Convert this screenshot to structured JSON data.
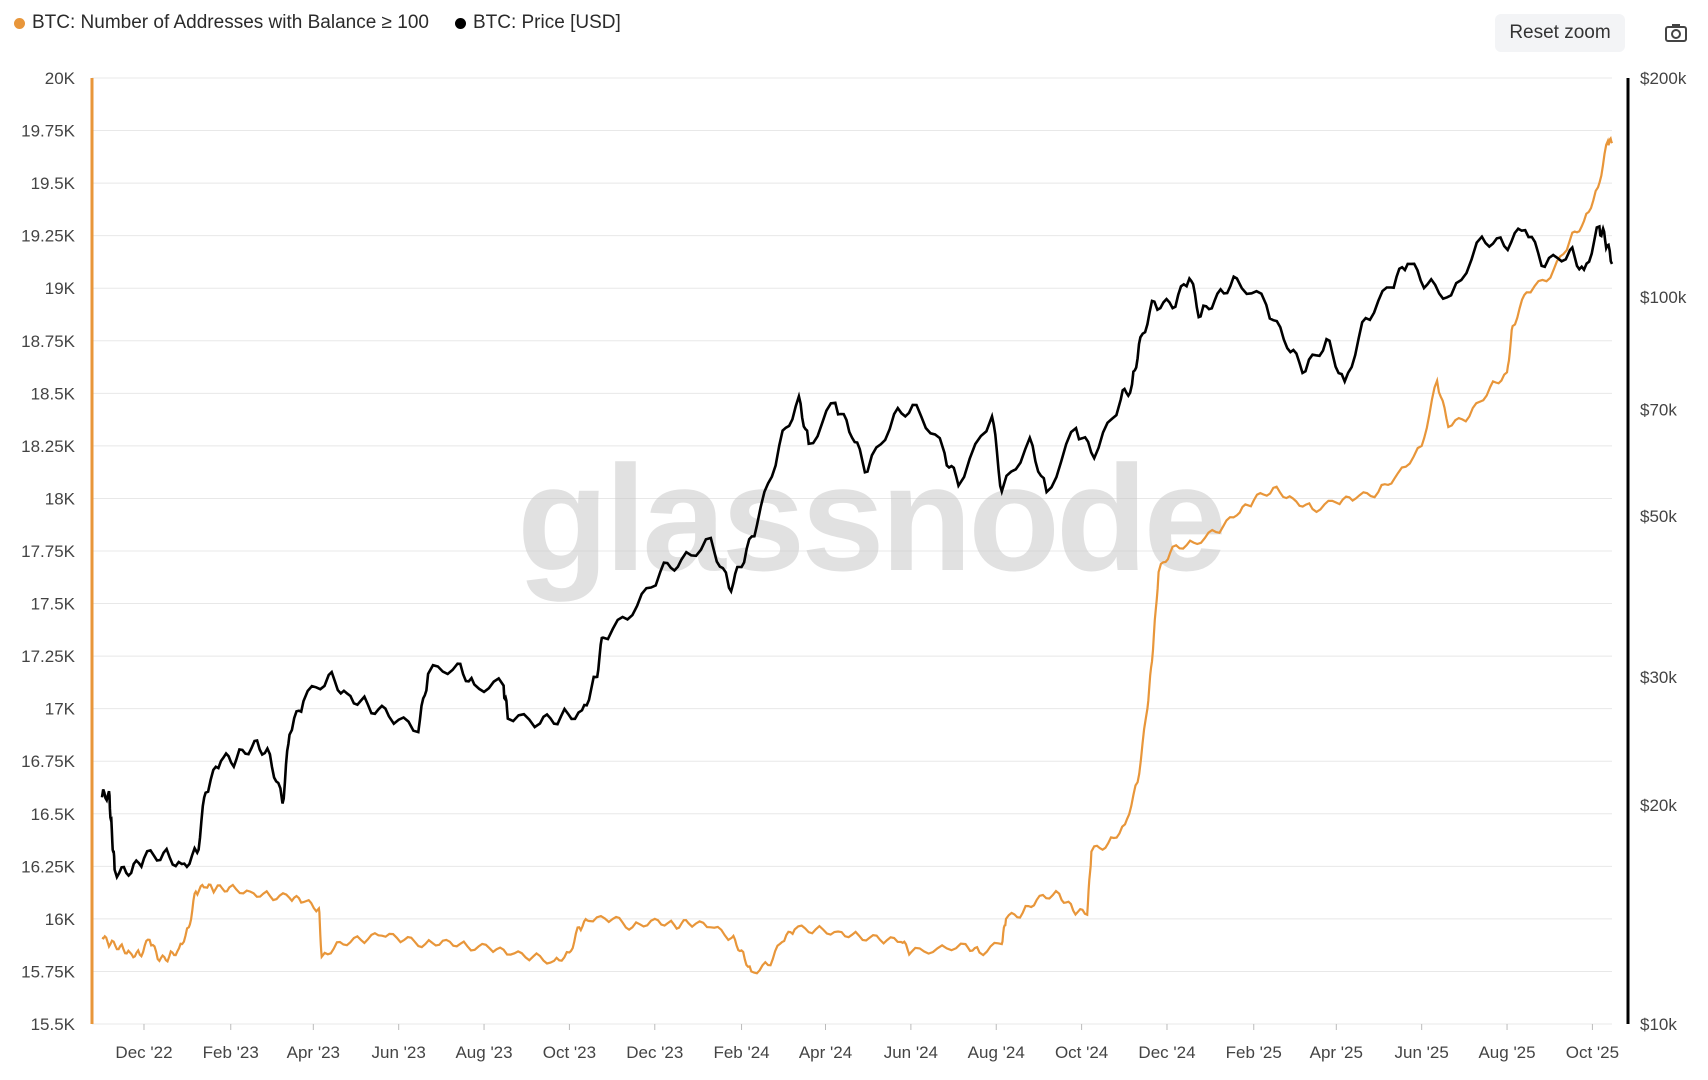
{
  "legend": {
    "series1_label": "BTC: Number of Addresses with Balance ≥ 100",
    "series2_label": "BTC: Price [USD]"
  },
  "toolbar": {
    "reset_zoom_label": "Reset zoom",
    "camera_icon": "camera-icon"
  },
  "watermark": "glassnode",
  "colors": {
    "addresses": "#E8963A",
    "price": "#000000",
    "grid": "#e8e8e8",
    "left_axis": "#E8963A",
    "right_axis": "#000000"
  },
  "chart_data": {
    "type": "line",
    "x_tick_labels": [
      "Dec '22",
      "Feb '23",
      "Apr '23",
      "Jun '23",
      "Aug '23",
      "Oct '23",
      "Dec '23",
      "Feb '24",
      "Apr '24",
      "Jun '24",
      "Aug '24",
      "Oct '24",
      "Dec '24",
      "Feb '25",
      "Apr '25",
      "Jun '25",
      "Aug '25",
      "Oct '25"
    ],
    "y_left": {
      "min": 15500,
      "max": 20000,
      "tick_values": [
        15500,
        15750,
        16000,
        16250,
        16500,
        16750,
        17000,
        17250,
        17500,
        17750,
        18000,
        18250,
        18500,
        18750,
        19000,
        19250,
        19500,
        19750,
        20000
      ],
      "tick_labels": [
        "15.5K",
        "15.75K",
        "16K",
        "16.25K",
        "16.5K",
        "16.75K",
        "17K",
        "17.25K",
        "17.5K",
        "17.75K",
        "18K",
        "18.25K",
        "18.5K",
        "18.75K",
        "19K",
        "19.25K",
        "19.5K",
        "19.75K",
        "20K"
      ]
    },
    "y_right": {
      "scale": "log",
      "min": 10000,
      "max": 200000,
      "tick_values": [
        10000,
        20000,
        30000,
        50000,
        70000,
        100000,
        200000
      ],
      "tick_labels": [
        "$10k",
        "$20k",
        "$30k",
        "$50k",
        "$70k",
        "$100k",
        "$200k"
      ]
    },
    "series": [
      {
        "name": "BTC: Number of Addresses with Balance ≥ 100",
        "axis": "left",
        "points": [
          [
            "2022-11-01",
            15910
          ],
          [
            "2022-11-07",
            15880
          ],
          [
            "2022-11-14",
            15870
          ],
          [
            "2022-11-21",
            15840
          ],
          [
            "2022-11-28",
            15830
          ],
          [
            "2022-12-05",
            15900
          ],
          [
            "2022-12-12",
            15800
          ],
          [
            "2022-12-19",
            15820
          ],
          [
            "2022-12-26",
            15860
          ],
          [
            "2023-01-02",
            15960
          ],
          [
            "2023-01-07",
            16130
          ],
          [
            "2023-01-14",
            16150
          ],
          [
            "2023-01-21",
            16140
          ],
          [
            "2023-01-31",
            16150
          ],
          [
            "2023-02-15",
            16130
          ],
          [
            "2023-03-01",
            16110
          ],
          [
            "2023-03-15",
            16100
          ],
          [
            "2023-03-25",
            16080
          ],
          [
            "2023-04-05",
            16050
          ],
          [
            "2023-04-07",
            15820
          ],
          [
            "2023-04-20",
            15890
          ],
          [
            "2023-05-05",
            15900
          ],
          [
            "2023-05-20",
            15920
          ],
          [
            "2023-06-05",
            15900
          ],
          [
            "2023-06-20",
            15880
          ],
          [
            "2023-07-05",
            15900
          ],
          [
            "2023-07-20",
            15870
          ],
          [
            "2023-08-05",
            15860
          ],
          [
            "2023-08-20",
            15830
          ],
          [
            "2023-09-05",
            15820
          ],
          [
            "2023-09-20",
            15800
          ],
          [
            "2023-10-01",
            15840
          ],
          [
            "2023-10-08",
            15960
          ],
          [
            "2023-10-15",
            15990
          ],
          [
            "2023-11-01",
            16000
          ],
          [
            "2023-11-15",
            15960
          ],
          [
            "2023-12-01",
            16000
          ],
          [
            "2023-12-15",
            15970
          ],
          [
            "2023-12-25",
            15980
          ],
          [
            "2024-01-10",
            15960
          ],
          [
            "2024-01-25",
            15910
          ],
          [
            "2024-02-01",
            15850
          ],
          [
            "2024-02-08",
            15750
          ],
          [
            "2024-02-20",
            15780
          ],
          [
            "2024-03-01",
            15890
          ],
          [
            "2024-03-10",
            15950
          ],
          [
            "2024-03-25",
            15950
          ],
          [
            "2024-04-10",
            15940
          ],
          [
            "2024-04-25",
            15920
          ],
          [
            "2024-05-10",
            15900
          ],
          [
            "2024-05-25",
            15890
          ],
          [
            "2024-06-01",
            15840
          ],
          [
            "2024-06-20",
            15860
          ],
          [
            "2024-07-10",
            15880
          ],
          [
            "2024-07-20",
            15840
          ],
          [
            "2024-08-05",
            15880
          ],
          [
            "2024-08-08",
            16000
          ],
          [
            "2024-08-20",
            16030
          ],
          [
            "2024-09-01",
            16110
          ],
          [
            "2024-09-15",
            16120
          ],
          [
            "2024-09-25",
            16040
          ],
          [
            "2024-10-05",
            16020
          ],
          [
            "2024-10-08",
            16320
          ],
          [
            "2024-10-20",
            16360
          ],
          [
            "2024-11-01",
            16450
          ],
          [
            "2024-11-10",
            16650
          ],
          [
            "2024-11-17",
            17000
          ],
          [
            "2024-11-21",
            17280
          ],
          [
            "2024-11-25",
            17650
          ],
          [
            "2024-12-05",
            17770
          ],
          [
            "2024-12-20",
            17790
          ],
          [
            "2025-01-05",
            17840
          ],
          [
            "2025-01-20",
            17920
          ],
          [
            "2025-02-01",
            17990
          ],
          [
            "2025-02-15",
            18050
          ],
          [
            "2025-03-01",
            18000
          ],
          [
            "2025-03-15",
            17950
          ],
          [
            "2025-04-01",
            17980
          ],
          [
            "2025-04-15",
            18000
          ],
          [
            "2025-05-01",
            18030
          ],
          [
            "2025-05-15",
            18120
          ],
          [
            "2025-06-01",
            18250
          ],
          [
            "2025-06-12",
            18560
          ],
          [
            "2025-06-20",
            18340
          ],
          [
            "2025-07-05",
            18390
          ],
          [
            "2025-07-20",
            18530
          ],
          [
            "2025-08-01",
            18600
          ],
          [
            "2025-08-05",
            18820
          ],
          [
            "2025-08-15",
            18980
          ],
          [
            "2025-09-01",
            19050
          ],
          [
            "2025-09-15",
            19230
          ],
          [
            "2025-09-25",
            19320
          ],
          [
            "2025-10-05",
            19480
          ],
          [
            "2025-10-12",
            19700
          ],
          [
            "2025-10-15",
            19690
          ]
        ]
      },
      {
        "name": "BTC: Price [USD]",
        "axis": "right",
        "points": [
          [
            "2022-11-01",
            20500
          ],
          [
            "2022-11-06",
            20900
          ],
          [
            "2022-11-08",
            18500
          ],
          [
            "2022-11-10",
            16300
          ],
          [
            "2022-11-20",
            16000
          ],
          [
            "2022-12-01",
            16900
          ],
          [
            "2022-12-15",
            17200
          ],
          [
            "2022-12-28",
            16600
          ],
          [
            "2023-01-08",
            17200
          ],
          [
            "2023-01-14",
            20800
          ],
          [
            "2023-01-25",
            23000
          ],
          [
            "2023-02-05",
            23100
          ],
          [
            "2023-02-18",
            24500
          ],
          [
            "2023-03-01",
            23500
          ],
          [
            "2023-03-10",
            20100
          ],
          [
            "2023-03-15",
            25000
          ],
          [
            "2023-03-25",
            27800
          ],
          [
            "2023-04-12",
            30200
          ],
          [
            "2023-04-25",
            28500
          ],
          [
            "2023-05-10",
            27500
          ],
          [
            "2023-05-25",
            26500
          ],
          [
            "2023-06-15",
            25200
          ],
          [
            "2023-06-22",
            30300
          ],
          [
            "2023-07-13",
            31300
          ],
          [
            "2023-07-25",
            29300
          ],
          [
            "2023-08-15",
            29200
          ],
          [
            "2023-08-18",
            26300
          ],
          [
            "2023-09-10",
            25900
          ],
          [
            "2023-09-25",
            26500
          ],
          [
            "2023-10-10",
            27000
          ],
          [
            "2023-10-20",
            30000
          ],
          [
            "2023-10-25",
            34000
          ],
          [
            "2023-11-15",
            36500
          ],
          [
            "2023-12-05",
            41900
          ],
          [
            "2023-12-20",
            43500
          ],
          [
            "2024-01-10",
            46600
          ],
          [
            "2024-01-23",
            39800
          ],
          [
            "2024-02-01",
            42500
          ],
          [
            "2024-02-12",
            48500
          ],
          [
            "2024-02-28",
            62500
          ],
          [
            "2024-03-13",
            73000
          ],
          [
            "2024-03-20",
            62800
          ],
          [
            "2024-04-08",
            71500
          ],
          [
            "2024-04-20",
            64000
          ],
          [
            "2024-05-01",
            57500
          ],
          [
            "2024-05-20",
            69000
          ],
          [
            "2024-06-05",
            71000
          ],
          [
            "2024-06-25",
            61000
          ],
          [
            "2024-07-05",
            55000
          ],
          [
            "2024-07-29",
            68500
          ],
          [
            "2024-08-05",
            54000
          ],
          [
            "2024-08-25",
            64000
          ],
          [
            "2024-09-06",
            53900
          ],
          [
            "2024-09-27",
            66000
          ],
          [
            "2024-10-10",
            60000
          ],
          [
            "2024-10-29",
            72300
          ],
          [
            "2024-11-06",
            75800
          ],
          [
            "2024-11-12",
            88000
          ],
          [
            "2024-11-22",
            98500
          ],
          [
            "2024-12-05",
            96500
          ],
          [
            "2024-12-17",
            106000
          ],
          [
            "2024-12-25",
            94000
          ],
          [
            "2025-01-06",
            101000
          ],
          [
            "2025-01-20",
            106000
          ],
          [
            "2025-02-10",
            97500
          ],
          [
            "2025-02-25",
            85000
          ],
          [
            "2025-03-10",
            79000
          ],
          [
            "2025-03-25",
            87500
          ],
          [
            "2025-04-07",
            76500
          ],
          [
            "2025-04-22",
            93500
          ],
          [
            "2025-05-10",
            103000
          ],
          [
            "2025-05-22",
            111000
          ],
          [
            "2025-06-05",
            104000
          ],
          [
            "2025-06-22",
            100500
          ],
          [
            "2025-07-14",
            121000
          ],
          [
            "2025-07-30",
            117500
          ],
          [
            "2025-08-14",
            123500
          ],
          [
            "2025-08-28",
            110000
          ],
          [
            "2025-09-15",
            116000
          ],
          [
            "2025-09-25",
            109000
          ],
          [
            "2025-10-06",
            125000
          ],
          [
            "2025-10-10",
            120000
          ],
          [
            "2025-10-15",
            111000
          ]
        ]
      }
    ],
    "x_domain": [
      "2022-11-01",
      "2025-10-15"
    ],
    "grid": true,
    "legend_position": "top-left"
  }
}
